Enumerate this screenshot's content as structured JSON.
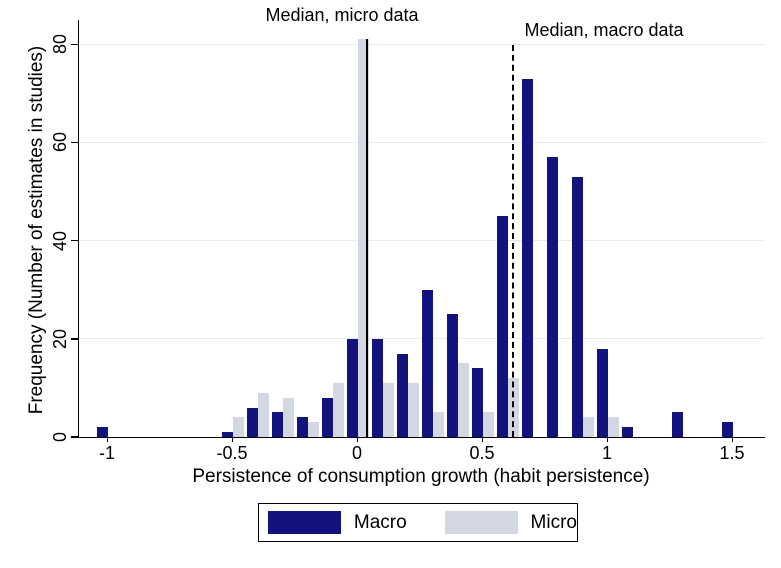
{
  "chart_data": {
    "type": "bar",
    "subtype": "paired-histogram",
    "title": "",
    "xlabel": "Persistence of consumption growth (habit persistence)",
    "ylabel": "Frequency (Number of estimates in studies)",
    "categories": [
      -1.0,
      -0.5,
      -0.4,
      -0.3,
      -0.2,
      -0.1,
      0.0,
      0.1,
      0.2,
      0.3,
      0.4,
      0.5,
      0.6,
      0.7,
      0.8,
      0.9,
      1.0,
      1.1,
      1.3,
      1.5
    ],
    "series": [
      {
        "name": "Macro",
        "color": "#13137e",
        "values": [
          2,
          1,
          6,
          5,
          4,
          8,
          20,
          20,
          17,
          30,
          25,
          14,
          45,
          73,
          57,
          53,
          18,
          2,
          5,
          3
        ]
      },
      {
        "name": "Micro",
        "color": "#d3d7e2",
        "values": [
          0,
          4,
          9,
          8,
          3,
          11,
          81,
          11,
          11,
          5,
          15,
          5,
          12,
          0,
          0,
          4,
          4,
          0,
          0,
          0
        ]
      }
    ],
    "x_ticks": [
      -1,
      -0.5,
      0,
      0.5,
      1,
      1.5
    ],
    "x_tick_labels": [
      "-1",
      "-0.5",
      "0",
      "0.5",
      "1",
      "1.5"
    ],
    "y_ticks": [
      0,
      20,
      40,
      60,
      80
    ],
    "y_tick_labels": [
      "0",
      "20",
      "40",
      "60",
      "80"
    ],
    "xlim": [
      -1.12,
      1.63
    ],
    "ylim": [
      0,
      85
    ],
    "grid": "horizontal",
    "gridline_color": "#e4ecf4",
    "axis_color": "#000000",
    "background": "#ffffff",
    "vlines": [
      {
        "label": "Median, micro data",
        "x": 0.02,
        "style": "solid"
      },
      {
        "label": "Median, macro data",
        "x": 0.62,
        "style": "dashed"
      }
    ],
    "legend": {
      "position": "bottom-center"
    }
  }
}
